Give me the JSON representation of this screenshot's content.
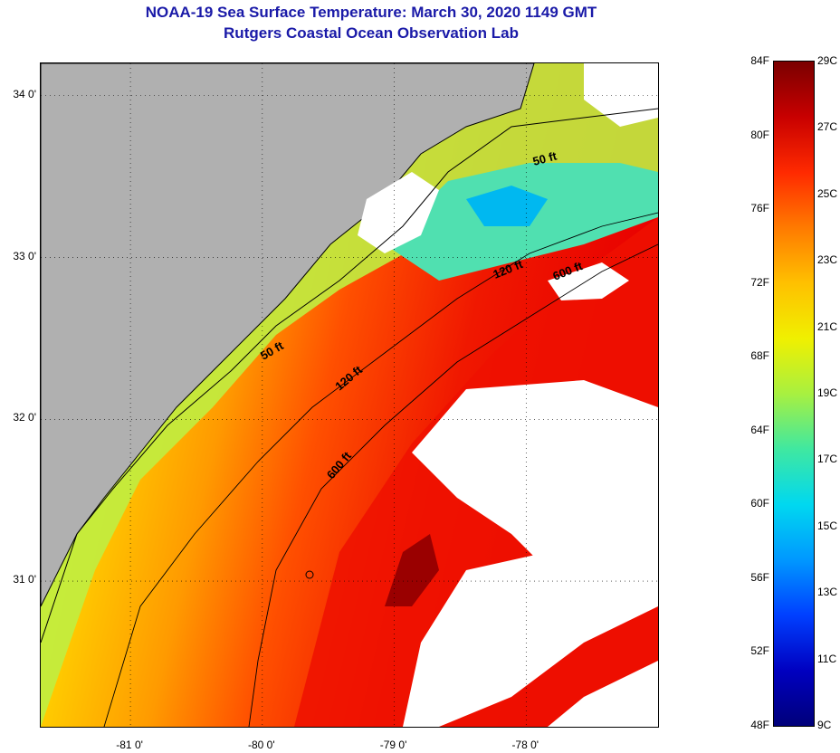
{
  "title": {
    "line1": "NOAA-19 Sea Surface Temperature:  March 30, 2020 1149 GMT",
    "line2": "Rutgers Coastal Ocean Observation Lab"
  },
  "map": {
    "lat_labels": [
      "34 0'",
      "33 0'",
      "32 0'",
      "31 0'"
    ],
    "lat_values": [
      34,
      33,
      32,
      31
    ],
    "lon_labels": [
      "-81 0'",
      "-80 0'",
      "-79 0'",
      "-78 0'"
    ],
    "lon_values": [
      -81,
      -80,
      -79,
      -78
    ],
    "lat_range": [
      30.1,
      34.2
    ],
    "lon_range": [
      -81.68,
      -77.0
    ],
    "land_color": "#b0b0b0",
    "cloud_color": "#ffffff",
    "contours": [
      {
        "label": "50 ft"
      },
      {
        "label": "120 ft"
      },
      {
        "label": "600 ft"
      },
      {
        "label": "50 ft"
      },
      {
        "label": "120 ft"
      },
      {
        "label": "600 ft"
      }
    ]
  },
  "colorbar": {
    "f_labels": [
      "84F",
      "80F",
      "76F",
      "72F",
      "68F",
      "64F",
      "60F",
      "56F",
      "52F",
      "48F"
    ],
    "c_labels": [
      "29C",
      "27C",
      "25C",
      "23C",
      "21C",
      "19C",
      "17C",
      "15C",
      "13C",
      "11C",
      "9C"
    ],
    "colors": [
      "#7a0000",
      "#c80000",
      "#ff2a00",
      "#ff7a00",
      "#ffc000",
      "#f0f000",
      "#a8f040",
      "#40e8a0",
      "#00d8f0",
      "#0098ff",
      "#0040ff",
      "#0000c0",
      "#00007a"
    ]
  }
}
